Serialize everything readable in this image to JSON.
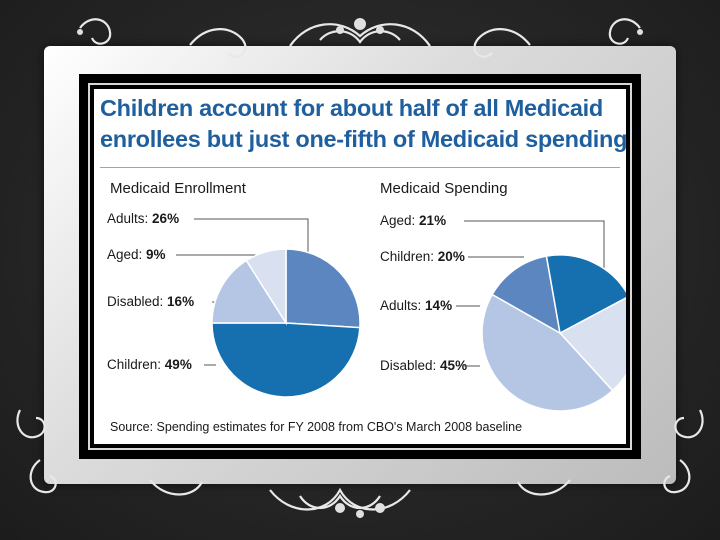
{
  "slide": {
    "title_line1": "Children account for about half of all Medicaid",
    "title_line2": "enrollees but just one-fifth of Medicaid spending",
    "source": "Source: Spending estimates for FY 2008 from CBO's March 2008 baseline"
  },
  "chart_data": [
    {
      "type": "pie",
      "title": "Medicaid Enrollment",
      "slices": [
        {
          "name": "Adults",
          "value": 26,
          "label": "26%",
          "color": "#5b86c0"
        },
        {
          "name": "Children",
          "value": 49,
          "label": "49%",
          "color": "#1670b0"
        },
        {
          "name": "Disabled",
          "value": 16,
          "label": "16%",
          "color": "#b4c6e4"
        },
        {
          "name": "Aged",
          "value": 9,
          "label": "9%",
          "color": "#d9e1f1"
        }
      ]
    },
    {
      "type": "pie",
      "title": "Medicaid Spending",
      "slices": [
        {
          "name": "Aged",
          "value": 21,
          "label": "21%",
          "color": "#d9e1f1"
        },
        {
          "name": "Disabled",
          "value": 45,
          "label": "45%",
          "color": "#b4c6e4"
        },
        {
          "name": "Adults",
          "value": 14,
          "label": "14%",
          "color": "#5b86c0"
        },
        {
          "name": "Children",
          "value": 20,
          "label": "20%",
          "color": "#1670b0"
        }
      ]
    }
  ]
}
